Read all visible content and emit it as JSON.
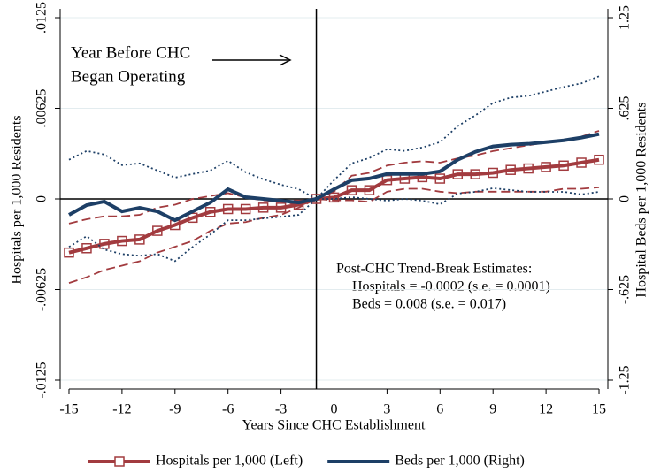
{
  "chart_data": {
    "type": "line",
    "x_label": "Years Since CHC Establishment",
    "y_label": "Hospitals per 1,000 Residents",
    "y2_label": "Hospital Beds per 1,000 Residents",
    "annotations": [
      "Year Before CHC",
      "Began Operating",
      "Post-CHC Trend-Break Estimates:",
      "Hospitals = -0.0002 (s.e. = 0.0001)",
      "Beds = 0.008 (s.e. = 0.017)"
    ],
    "vline": -1,
    "x": [
      -15,
      -14,
      -13,
      -12,
      -11,
      -10,
      -9,
      -8,
      -7,
      -6,
      -5,
      -4,
      -3,
      -2,
      -1,
      0,
      1,
      2,
      3,
      4,
      5,
      6,
      7,
      8,
      9,
      10,
      11,
      12,
      13,
      14,
      15
    ],
    "xlim": [
      -15.5,
      15.5
    ],
    "xticks": [
      -15,
      -12,
      -9,
      -6,
      -3,
      0,
      3,
      6,
      9,
      12,
      15
    ],
    "ylim": [
      -0.0125,
      0.0125
    ],
    "yticks": [
      {
        "value": 0.0125,
        "label": ".0125"
      },
      {
        "value": 0.00625,
        "label": ".00625"
      },
      0,
      {
        "value": -0.00625,
        "label": "-.00625"
      },
      {
        "value": -0.0125,
        "label": "-.0125"
      }
    ],
    "y2lim": [
      -1.25,
      1.25
    ],
    "y2ticks": [
      1.25,
      {
        "value": 0.625,
        "label": ".625"
      },
      0,
      {
        "value": -0.625,
        "label": "-.625"
      },
      -1.25
    ],
    "grid": true,
    "series": [
      {
        "name": "Hospitals per 1,000 (Left)",
        "color": "#a23b3f",
        "style": "solid",
        "marker": "square",
        "values": [
          -0.0037,
          -0.0034,
          -0.0031,
          -0.0029,
          -0.0028,
          -0.0022,
          -0.0018,
          -0.0013,
          -0.0009,
          -0.0007,
          -0.0007,
          -0.0006,
          -0.0006,
          -0.0004,
          0,
          0.0001,
          0.0006,
          0.0006,
          0.0013,
          0.0014,
          0.0015,
          0.0014,
          0.0017,
          0.0017,
          0.0018,
          0.002,
          0.0021,
          0.0022,
          0.0023,
          0.0025,
          0.0027
        ]
      },
      {
        "color": "#a23b3f",
        "style": "dashed",
        "values": [
          -0.0017,
          -0.0014,
          -0.0012,
          -0.0012,
          -0.0011,
          -0.0006,
          -0.0004,
          0,
          0.0002,
          0.0004,
          0.0001,
          -0.0001,
          -0.0002,
          -0.0004,
          0,
          0.0005,
          0.0016,
          0.0018,
          0.0023,
          0.0025,
          0.0026,
          0.0025,
          0.0028,
          0.003,
          0.0033,
          0.0035,
          0.0037,
          0.0039,
          0.004,
          0.0043,
          0.0047
        ]
      },
      {
        "color": "#a23b3f",
        "style": "dashed",
        "values": [
          -0.0058,
          -0.0054,
          -0.0049,
          -0.0046,
          -0.0043,
          -0.0037,
          -0.0033,
          -0.0029,
          -0.0022,
          -0.0017,
          -0.0016,
          -0.0013,
          -0.0011,
          -0.0006,
          0,
          -0.0001,
          -0.0001,
          -0.0002,
          0.0005,
          0.0007,
          0.0007,
          0.0005,
          0.0004,
          0.0005,
          0.0005,
          0.0005,
          0.0005,
          0.0005,
          0.0007,
          0.0007,
          0.0008
        ]
      },
      {
        "name": "Beds per 1,000 (Right)",
        "color": "#1d3f66",
        "style": "solid",
        "axis": "y2",
        "values": [
          -0.11,
          -0.043,
          -0.018,
          -0.086,
          -0.061,
          -0.086,
          -0.147,
          -0.086,
          -0.025,
          0.067,
          0.012,
          0,
          -0.012,
          -0.025,
          0,
          0.067,
          0.129,
          0.141,
          0.172,
          0.172,
          0.172,
          0.19,
          0.27,
          0.325,
          0.362,
          0.374,
          0.38,
          0.392,
          0.404,
          0.423,
          0.447
        ]
      },
      {
        "color": "#1d3f66",
        "style": "dotted",
        "axis": "y2",
        "values": [
          0.27,
          0.331,
          0.306,
          0.233,
          0.245,
          0.196,
          0.147,
          0.172,
          0.196,
          0.263,
          0.184,
          0.135,
          0.098,
          0.067,
          0,
          0.129,
          0.245,
          0.282,
          0.343,
          0.331,
          0.355,
          0.392,
          0.502,
          0.576,
          0.662,
          0.699,
          0.711,
          0.741,
          0.772,
          0.797,
          0.846
        ]
      },
      {
        "color": "#1d3f66",
        "style": "dotted",
        "axis": "y2",
        "values": [
          -0.331,
          -0.257,
          -0.349,
          -0.38,
          -0.392,
          -0.38,
          -0.429,
          -0.331,
          -0.245,
          -0.147,
          -0.147,
          -0.135,
          -0.123,
          -0.11,
          0,
          0,
          0.012,
          0,
          -0.012,
          0,
          -0.012,
          -0.037,
          0.037,
          0.049,
          0.074,
          0.061,
          0.049,
          0.049,
          0.049,
          0.031,
          0.049
        ]
      }
    ]
  }
}
